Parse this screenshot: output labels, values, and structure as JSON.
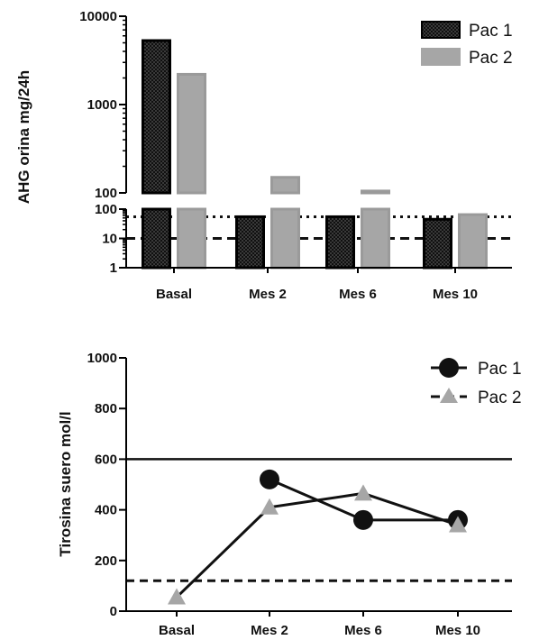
{
  "chart_data": [
    {
      "type": "bar",
      "ylabel": "AHG orina mg/24h",
      "yscale": "log (broken axis)",
      "categories": [
        "Basal",
        "Mes 2",
        "Mes 6",
        "Mes 10"
      ],
      "series": [
        {
          "name": "Pac 1",
          "values": [
            5300,
            55,
            55,
            45
          ],
          "color": "#222222",
          "pattern": "checkered"
        },
        {
          "name": "Pac 2",
          "values": [
            2200,
            150,
            105,
            65
          ],
          "color": "#a6a6a6"
        }
      ],
      "yticks_upper": [
        "100",
        "1000",
        "10000"
      ],
      "yticks_lower": [
        "1",
        "10",
        "100"
      ],
      "reference_lines": [
        {
          "value": 55,
          "style": "dotted"
        },
        {
          "value": 10,
          "style": "dashed"
        }
      ],
      "legend_position": "top-right"
    },
    {
      "type": "line",
      "ylabel": "Tirosina suero   mol/l",
      "categories": [
        "Basal",
        "Mes 2",
        "Mes 6",
        "Mes 10"
      ],
      "ylim": [
        0,
        1000
      ],
      "yticks": [
        "0",
        "200",
        "400",
        "600",
        "800",
        "1000"
      ],
      "series": [
        {
          "name": "Pac 1",
          "values": [
            null,
            520,
            360,
            360
          ],
          "color": "#111111",
          "marker": "circle",
          "line": "solid"
        },
        {
          "name": "Pac 2",
          "values": [
            55,
            410,
            465,
            340
          ],
          "color": "#a6a6a6",
          "marker": "triangle",
          "line": "dashed"
        }
      ],
      "reference_lines": [
        {
          "value": 600,
          "style": "solid"
        },
        {
          "value": 120,
          "style": "dashed"
        }
      ],
      "legend_position": "top-right"
    }
  ]
}
